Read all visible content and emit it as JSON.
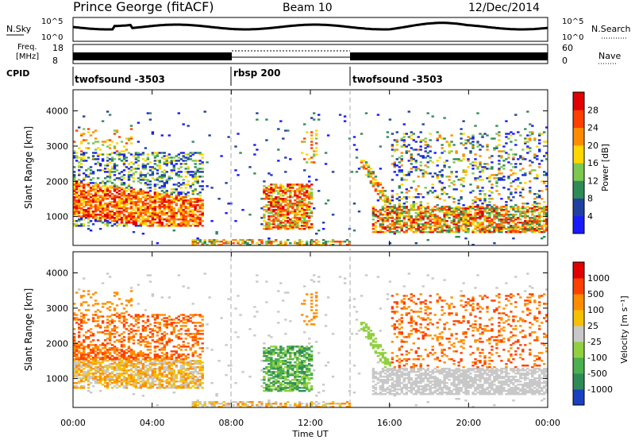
{
  "header": {
    "station": "Prince George (fitACF)",
    "beam": "Beam 10",
    "date": "12/Dec/2014"
  },
  "nsky_panel": {
    "left_label": "N.Sky",
    "left_ticks": [
      "10^5",
      "10^0"
    ],
    "right_ticks": [
      "10^5",
      "10^0"
    ],
    "right_label": "N.Search"
  },
  "freq_panel": {
    "left_label_1": "Freq.",
    "left_label_2": "[MHz]",
    "left_ticks": [
      "18",
      "8"
    ],
    "right_ticks": [
      "60",
      "0"
    ],
    "right_label": "Nave"
  },
  "cpid": {
    "label": "CPID",
    "segments": [
      {
        "name": "twofsound -3503",
        "start_hour": 0,
        "end_hour": 8
      },
      {
        "name": "rbsp 200",
        "start_hour": 8,
        "end_hour": 14
      },
      {
        "name": "twofsound -3503",
        "start_hour": 14,
        "end_hour": 24
      }
    ]
  },
  "power_panel": {
    "ylabel": "Slant Range [km]",
    "yticks": [
      "1000",
      "2000",
      "3000",
      "4000"
    ],
    "colorbar_label": "Power [dB]",
    "colorbar_ticks": [
      "4",
      "8",
      "12",
      "16",
      "20",
      "24",
      "28"
    ],
    "colors": [
      "#1a1aff",
      "#2040a0",
      "#2e8b57",
      "#7dc850",
      "#ffd700",
      "#ff8c00",
      "#ff4000",
      "#e00000"
    ]
  },
  "velocity_panel": {
    "ylabel": "Slant Range [km]",
    "yticks": [
      "1000",
      "2000",
      "3000",
      "4000"
    ],
    "colorbar_label": "Velocity [m s⁻¹]",
    "colorbar_ticks": [
      "1000",
      "500",
      "100",
      "25",
      "-25",
      "-100",
      "-500",
      "-1000"
    ],
    "colors": [
      "#1a3fbf",
      "#2e8b57",
      "#4caf50",
      "#90d040",
      "#c8c8c8",
      "#f5c000",
      "#ff8c00",
      "#ff4000",
      "#e00000"
    ]
  },
  "xaxis": {
    "label": "Time UT",
    "ticks": [
      "00:00",
      "04:00",
      "08:00",
      "12:00",
      "16:00",
      "20:00",
      "00:00"
    ]
  },
  "chart_data": {
    "type": "heatmap",
    "title": "Prince George (fitACF)",
    "xlabel": "Time UT",
    "ylabel": "Slant Range [km]",
    "xlim": [
      0,
      24
    ],
    "ylim": [
      180,
      4600
    ],
    "power_colorbar": {
      "label": "Power [dB]",
      "range": [
        0,
        32
      ]
    },
    "velocity_colorbar": {
      "label": "Velocity [m s⁻¹]",
      "range": [
        -1000,
        1000
      ]
    }
  }
}
